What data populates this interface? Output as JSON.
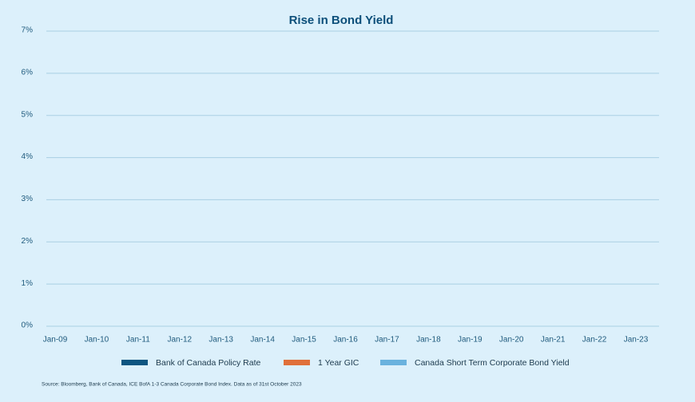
{
  "chart_data": {
    "type": "line",
    "title": "Rise in Bond Yield",
    "categories": [
      "Jan-09",
      "Jan-10",
      "Jan-11",
      "Jan-12",
      "Jan-13",
      "Jan-14",
      "Jan-15",
      "Jan-16",
      "Jan-17",
      "Jan-18",
      "Jan-19",
      "Jan-20",
      "Jan-21",
      "Jan-22",
      "Jan-23"
    ],
    "series": [
      {
        "name": "Bank of Canada Policy Rate",
        "color": "#0d5580",
        "values": [
          null,
          null,
          null,
          null,
          null,
          null,
          null,
          null,
          null,
          null,
          null,
          null,
          null,
          null,
          null
        ]
      },
      {
        "name": "1 Year GIC",
        "color": "#e0703a",
        "values": [
          null,
          null,
          null,
          null,
          null,
          null,
          null,
          null,
          null,
          null,
          null,
          null,
          null,
          null,
          null
        ]
      },
      {
        "name": "Canada Short Term Corporate Bond Yield",
        "color": "#6ab2de",
        "values": [
          null,
          null,
          null,
          null,
          null,
          null,
          null,
          null,
          null,
          null,
          null,
          null,
          null,
          null,
          null
        ]
      }
    ],
    "ylim": [
      0,
      7
    ],
    "yticks": [
      {
        "value": 0,
        "label": "0%"
      },
      {
        "value": 1,
        "label": "1%"
      },
      {
        "value": 2,
        "label": "2%"
      },
      {
        "value": 3,
        "label": "3%"
      },
      {
        "value": 4,
        "label": "4%"
      },
      {
        "value": 5,
        "label": "5%"
      },
      {
        "value": 6,
        "label": "6%"
      },
      {
        "value": 7,
        "label": "7%"
      }
    ],
    "grid": true,
    "legend": "bottom",
    "source": "Source: Bloomberg, Bank of Canada, ICE BofA 1-3 Canada Corporate Bond Index. Data as of 31st October 2023"
  }
}
